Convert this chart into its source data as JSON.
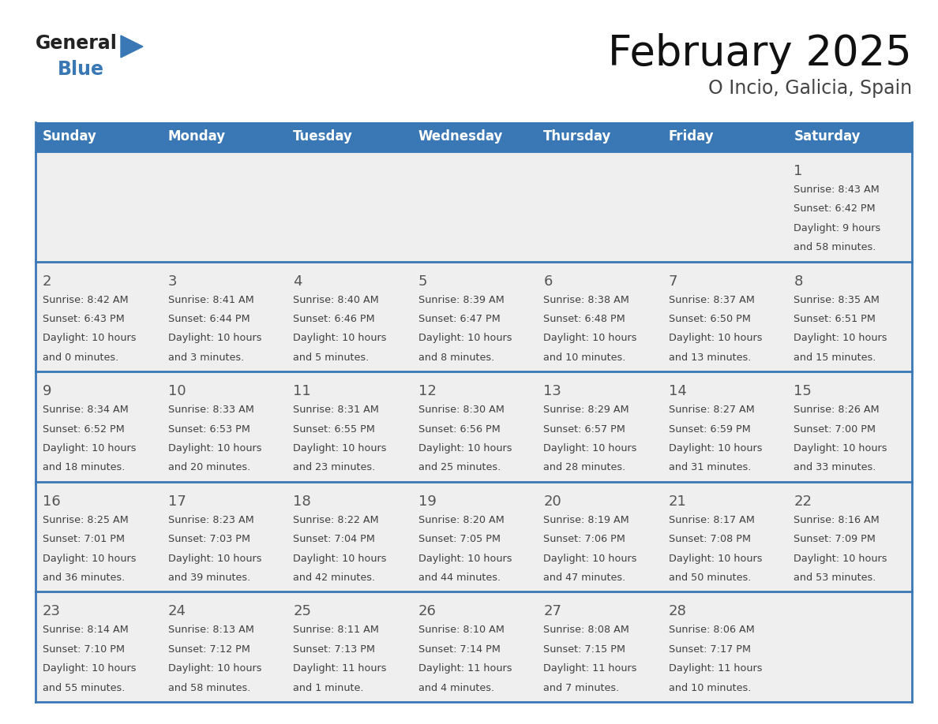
{
  "title": "February 2025",
  "subtitle": "O Incio, Galicia, Spain",
  "days_of_week": [
    "Sunday",
    "Monday",
    "Tuesday",
    "Wednesday",
    "Thursday",
    "Friday",
    "Saturday"
  ],
  "header_bg": "#3A78B5",
  "header_text": "#FFFFFF",
  "row_bg": "#EFEFEF",
  "separator_color": "#3A78B5",
  "day_number_color": "#555555",
  "info_text_color": "#404040",
  "calendar_data": [
    [
      {
        "day": null,
        "sunrise": null,
        "sunset": null,
        "daylight": null
      },
      {
        "day": null,
        "sunrise": null,
        "sunset": null,
        "daylight": null
      },
      {
        "day": null,
        "sunrise": null,
        "sunset": null,
        "daylight": null
      },
      {
        "day": null,
        "sunrise": null,
        "sunset": null,
        "daylight": null
      },
      {
        "day": null,
        "sunrise": null,
        "sunset": null,
        "daylight": null
      },
      {
        "day": null,
        "sunrise": null,
        "sunset": null,
        "daylight": null
      },
      {
        "day": 1,
        "sunrise": "8:43 AM",
        "sunset": "6:42 PM",
        "daylight": "9 hours and 58 minutes."
      }
    ],
    [
      {
        "day": 2,
        "sunrise": "8:42 AM",
        "sunset": "6:43 PM",
        "daylight": "10 hours and 0 minutes."
      },
      {
        "day": 3,
        "sunrise": "8:41 AM",
        "sunset": "6:44 PM",
        "daylight": "10 hours and 3 minutes."
      },
      {
        "day": 4,
        "sunrise": "8:40 AM",
        "sunset": "6:46 PM",
        "daylight": "10 hours and 5 minutes."
      },
      {
        "day": 5,
        "sunrise": "8:39 AM",
        "sunset": "6:47 PM",
        "daylight": "10 hours and 8 minutes."
      },
      {
        "day": 6,
        "sunrise": "8:38 AM",
        "sunset": "6:48 PM",
        "daylight": "10 hours and 10 minutes."
      },
      {
        "day": 7,
        "sunrise": "8:37 AM",
        "sunset": "6:50 PM",
        "daylight": "10 hours and 13 minutes."
      },
      {
        "day": 8,
        "sunrise": "8:35 AM",
        "sunset": "6:51 PM",
        "daylight": "10 hours and 15 minutes."
      }
    ],
    [
      {
        "day": 9,
        "sunrise": "8:34 AM",
        "sunset": "6:52 PM",
        "daylight": "10 hours and 18 minutes."
      },
      {
        "day": 10,
        "sunrise": "8:33 AM",
        "sunset": "6:53 PM",
        "daylight": "10 hours and 20 minutes."
      },
      {
        "day": 11,
        "sunrise": "8:31 AM",
        "sunset": "6:55 PM",
        "daylight": "10 hours and 23 minutes."
      },
      {
        "day": 12,
        "sunrise": "8:30 AM",
        "sunset": "6:56 PM",
        "daylight": "10 hours and 25 minutes."
      },
      {
        "day": 13,
        "sunrise": "8:29 AM",
        "sunset": "6:57 PM",
        "daylight": "10 hours and 28 minutes."
      },
      {
        "day": 14,
        "sunrise": "8:27 AM",
        "sunset": "6:59 PM",
        "daylight": "10 hours and 31 minutes."
      },
      {
        "day": 15,
        "sunrise": "8:26 AM",
        "sunset": "7:00 PM",
        "daylight": "10 hours and 33 minutes."
      }
    ],
    [
      {
        "day": 16,
        "sunrise": "8:25 AM",
        "sunset": "7:01 PM",
        "daylight": "10 hours and 36 minutes."
      },
      {
        "day": 17,
        "sunrise": "8:23 AM",
        "sunset": "7:03 PM",
        "daylight": "10 hours and 39 minutes."
      },
      {
        "day": 18,
        "sunrise": "8:22 AM",
        "sunset": "7:04 PM",
        "daylight": "10 hours and 42 minutes."
      },
      {
        "day": 19,
        "sunrise": "8:20 AM",
        "sunset": "7:05 PM",
        "daylight": "10 hours and 44 minutes."
      },
      {
        "day": 20,
        "sunrise": "8:19 AM",
        "sunset": "7:06 PM",
        "daylight": "10 hours and 47 minutes."
      },
      {
        "day": 21,
        "sunrise": "8:17 AM",
        "sunset": "7:08 PM",
        "daylight": "10 hours and 50 minutes."
      },
      {
        "day": 22,
        "sunrise": "8:16 AM",
        "sunset": "7:09 PM",
        "daylight": "10 hours and 53 minutes."
      }
    ],
    [
      {
        "day": 23,
        "sunrise": "8:14 AM",
        "sunset": "7:10 PM",
        "daylight": "10 hours and 55 minutes."
      },
      {
        "day": 24,
        "sunrise": "8:13 AM",
        "sunset": "7:12 PM",
        "daylight": "10 hours and 58 minutes."
      },
      {
        "day": 25,
        "sunrise": "8:11 AM",
        "sunset": "7:13 PM",
        "daylight": "11 hours and 1 minute."
      },
      {
        "day": 26,
        "sunrise": "8:10 AM",
        "sunset": "7:14 PM",
        "daylight": "11 hours and 4 minutes."
      },
      {
        "day": 27,
        "sunrise": "8:08 AM",
        "sunset": "7:15 PM",
        "daylight": "11 hours and 7 minutes."
      },
      {
        "day": 28,
        "sunrise": "8:06 AM",
        "sunset": "7:17 PM",
        "daylight": "11 hours and 10 minutes."
      },
      {
        "day": null,
        "sunrise": null,
        "sunset": null,
        "daylight": null
      }
    ]
  ],
  "logo_general_color": "#222222",
  "logo_blue_color": "#3A78B5",
  "title_fontsize": 38,
  "subtitle_fontsize": 17,
  "header_fontsize": 12,
  "day_number_fontsize": 12,
  "info_fontsize": 9.2
}
